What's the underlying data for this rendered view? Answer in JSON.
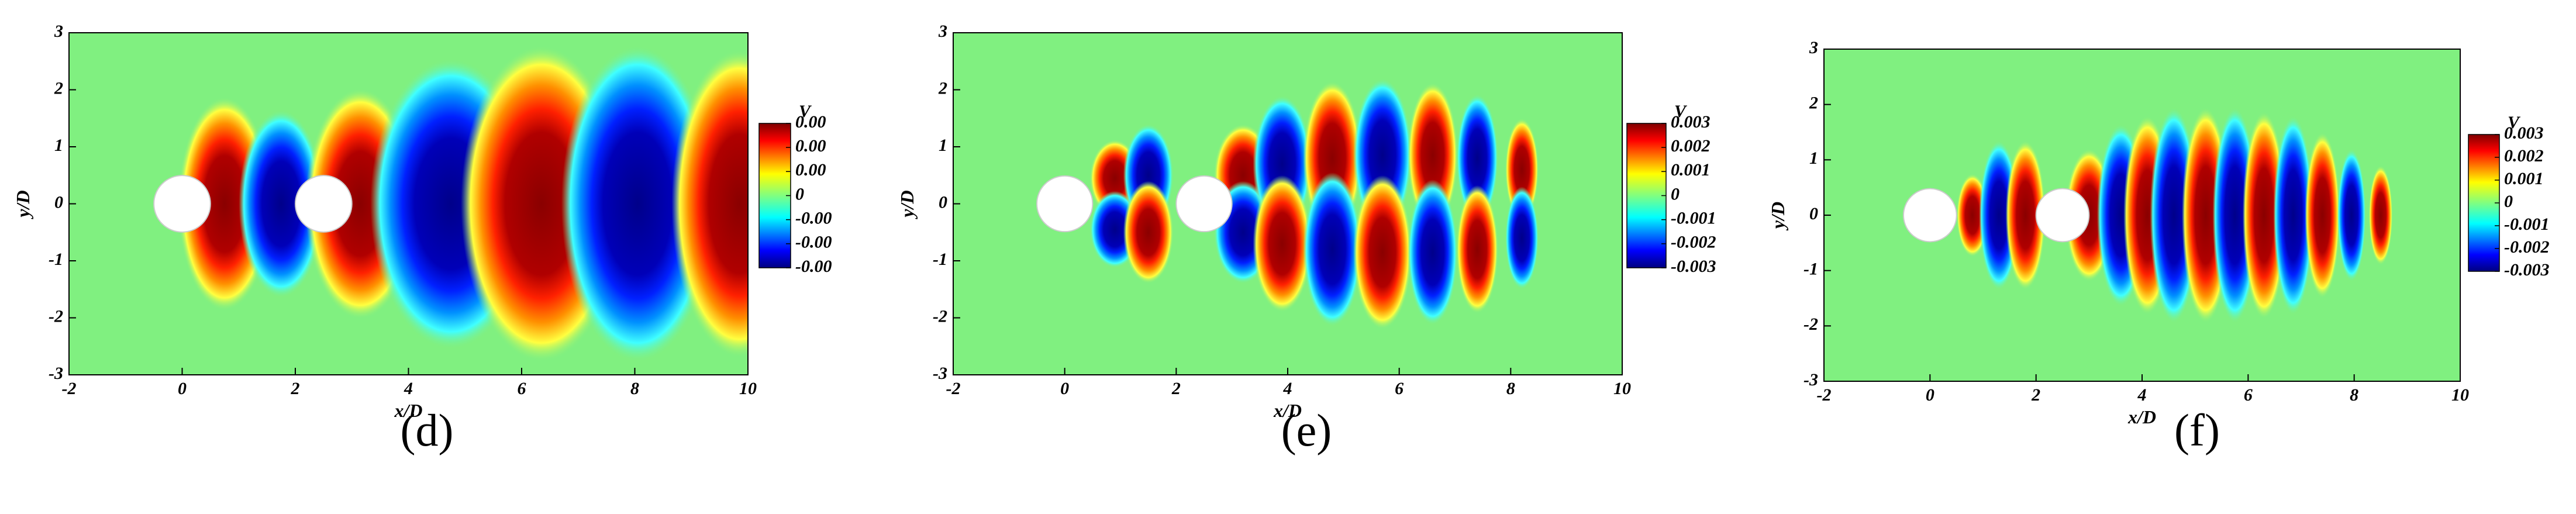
{
  "chart_data": [
    {
      "type": "contour",
      "caption": "(d)",
      "xlabel": "x/D",
      "ylabel": "y/D",
      "xlim": [
        -2,
        10
      ],
      "ylim": [
        -3,
        3
      ],
      "xticks": [
        -2,
        0,
        2,
        4,
        6,
        8,
        10
      ],
      "yticks": [
        -3,
        -2,
        -1,
        0,
        1,
        2,
        3
      ],
      "colormap": "jet",
      "colorbar": {
        "title": "V",
        "lim": [
          -0.003,
          0.003
        ],
        "ticks": [
          {
            "value": 0.003,
            "label": "0.00"
          },
          {
            "value": 0.002,
            "label": "0.00"
          },
          {
            "value": 0.001,
            "label": "0.00"
          },
          0,
          {
            "value": -0.001,
            "label": "-0.00"
          },
          {
            "value": -0.002,
            "label": "-0.00"
          },
          {
            "value": -0.003,
            "label": "-0.00"
          }
        ]
      }
    },
    {
      "type": "contour",
      "caption": "(e)",
      "xlabel": "x/D",
      "ylabel": "y/D",
      "xlim": [
        -2,
        10
      ],
      "ylim": [
        -3,
        3
      ],
      "xticks": [
        -2,
        0,
        2,
        4,
        6,
        8,
        10
      ],
      "yticks": [
        -3,
        -2,
        -1,
        0,
        1,
        2,
        3
      ],
      "colormap": "jet",
      "colorbar": {
        "title": "V",
        "lim": [
          -0.003,
          0.003
        ],
        "ticks": [
          0.003,
          0.002,
          0.001,
          0,
          -0.001,
          -0.002,
          -0.003
        ]
      }
    },
    {
      "type": "contour",
      "caption": "(f)",
      "xlabel": "x/D",
      "ylabel": "y/D",
      "xlim": [
        -2,
        10
      ],
      "ylim": [
        -3,
        3
      ],
      "xticks": [
        -2,
        0,
        2,
        4,
        6,
        8,
        10
      ],
      "yticks": [
        -3,
        -2,
        -1,
        0,
        1,
        2,
        3
      ],
      "colormap": "jet",
      "colorbar": {
        "title": "V",
        "lim": [
          -0.003,
          0.003
        ],
        "ticks": [
          0.003,
          0.002,
          0.001,
          0,
          -0.001,
          -0.002,
          -0.003
        ]
      }
    }
  ]
}
